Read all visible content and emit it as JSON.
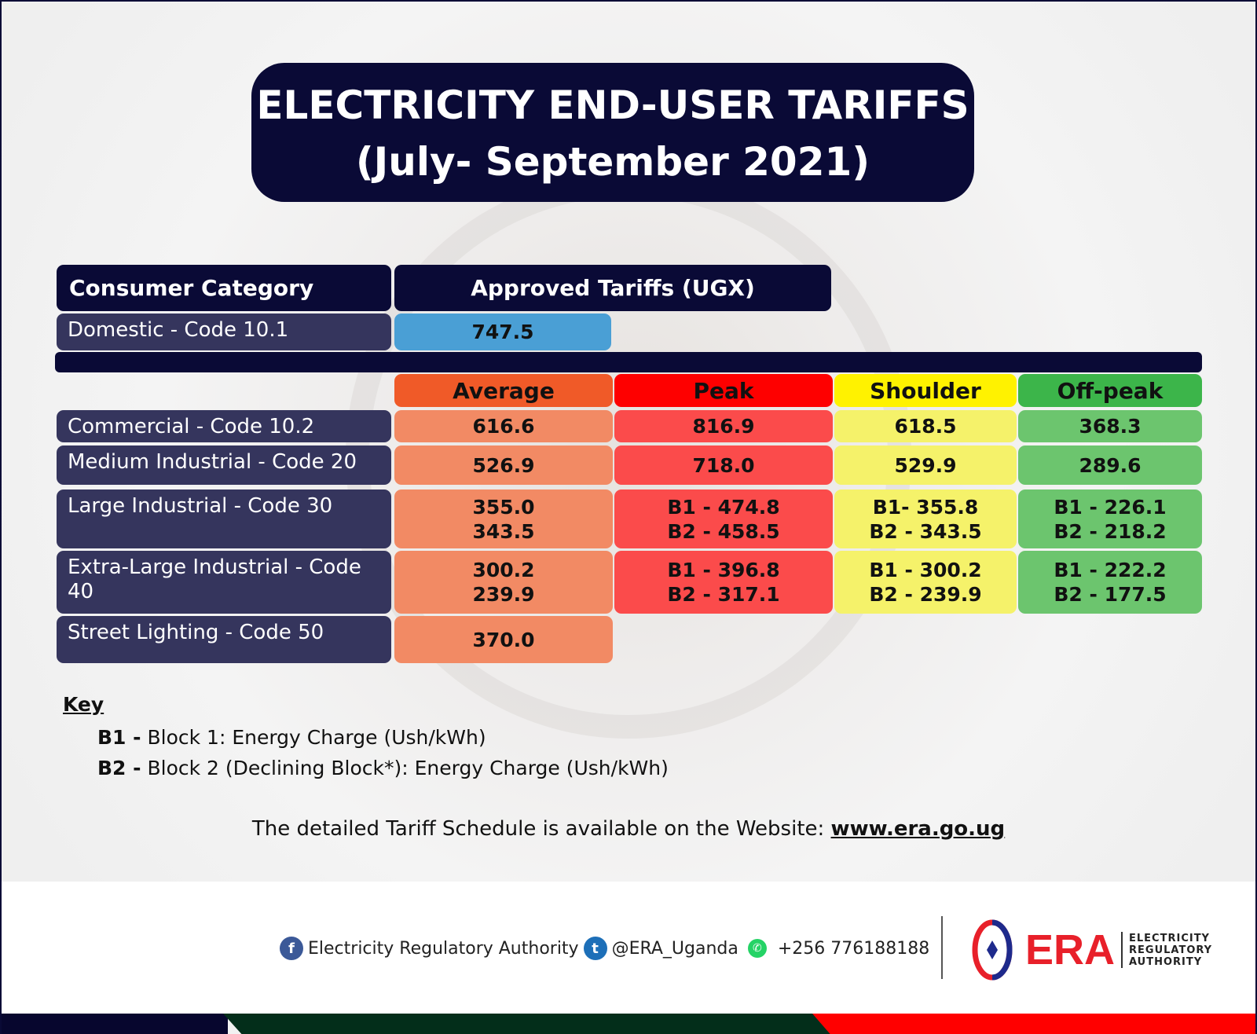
{
  "title": {
    "line1": "ELECTRICITY END-USER TARIFFS",
    "line2": "(July- September 2021)"
  },
  "table": {
    "header_category": "Consumer Category",
    "header_tariffs": "Approved Tariffs (UGX)",
    "domestic": {
      "label": "Domestic - Code 10.1",
      "value": "747.5"
    },
    "columns": [
      "Average",
      "Peak",
      "Shoulder",
      "Off-peak"
    ],
    "rows": [
      {
        "label": "Commercial - Code 10.2",
        "average": [
          "616.6"
        ],
        "peak": [
          "816.9"
        ],
        "shoulder": [
          "618.5"
        ],
        "offpeak": [
          "368.3"
        ]
      },
      {
        "label": "Medium Industrial - Code 20",
        "average": [
          "526.9"
        ],
        "peak": [
          "718.0"
        ],
        "shoulder": [
          "529.9"
        ],
        "offpeak": [
          "289.6"
        ]
      },
      {
        "label": "Large Industrial - Code 30",
        "average": [
          "355.0",
          "343.5"
        ],
        "peak": [
          "B1 - 474.8",
          "B2 - 458.5"
        ],
        "shoulder": [
          "B1- 355.8",
          "B2 - 343.5"
        ],
        "offpeak": [
          "B1 - 226.1",
          "B2 - 218.2"
        ]
      },
      {
        "label": "Extra-Large Industrial - Code 40",
        "average": [
          "300.2",
          "239.9"
        ],
        "peak": [
          "B1 - 396.8",
          "B2 - 317.1"
        ],
        "shoulder": [
          "B1 - 300.2",
          "B2 - 239.9"
        ],
        "offpeak": [
          "B1 - 222.2",
          "B2 - 177.5"
        ]
      },
      {
        "label": "Street Lighting - Code 50",
        "average": [
          "370.0"
        ]
      }
    ]
  },
  "key": {
    "title": "Key",
    "items": [
      {
        "code": "B1 -",
        "text": " Block 1: Energy Charge (Ush/kWh)"
      },
      {
        "code": "B2 -",
        "text": " Block 2 (Declining Block*): Energy Charge (Ush/kWh)"
      }
    ]
  },
  "website": {
    "text": "The detailed Tariff Schedule is available on the Website: ",
    "link": "www.era.go.ug"
  },
  "footer": {
    "facebook": "Electricity Regulatory Authority",
    "twitter": "@ERA_Uganda",
    "whatsapp": "+256 776188188",
    "logo_text": "ERA",
    "logo_sub": [
      "ELECTRICITY",
      "REGULATORY",
      "AUTHORITY"
    ]
  },
  "colors": {
    "navy": "#0a0a36",
    "average": "#f05a28",
    "peak": "#fe0000",
    "shoulder": "#fff200",
    "offpeak": "#3cb54a",
    "domestic": "#4a9fd5",
    "brand_red": "#e8202a"
  }
}
